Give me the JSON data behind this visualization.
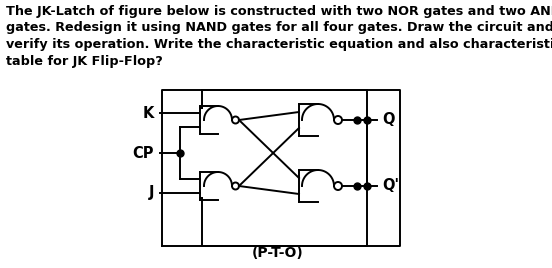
{
  "title_text": "The JK-Latch of figure below is constructed with two NOR gates and two AND\ngates. Redesign it using NAND gates for all four gates. Draw the circuit and\nverify its operation. Write the characteristic equation and also characteristic\ntable for JK Flip-Flop?",
  "caption": "(P-T-O)",
  "label_K": "K",
  "label_CP": "CP",
  "label_J": "J",
  "label_Q": "Q",
  "label_Qp": "Q'",
  "bg_color": "#ffffff",
  "line_color": "#000000",
  "title_fontsize": 9.2,
  "label_fontsize": 10.5
}
